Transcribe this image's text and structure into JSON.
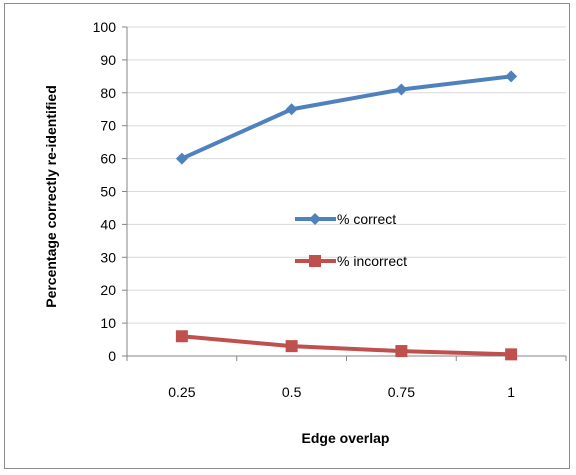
{
  "chart_data": {
    "type": "line",
    "categories": [
      "0.25",
      "0.5",
      "0.75",
      "1"
    ],
    "xlabel": "Edge overlap",
    "ylabel": "Percentage correctly re-identified",
    "ylim": [
      0,
      100
    ],
    "yticks": [
      "0",
      "10",
      "20",
      "30",
      "40",
      "50",
      "60",
      "70",
      "80",
      "90",
      "100"
    ],
    "grid": true,
    "legend": "center-right",
    "series": [
      {
        "name": "% correct",
        "values": [
          60,
          75,
          81,
          85
        ],
        "color": "#4f81bd",
        "marker": "diamond"
      },
      {
        "name": "% incorrect",
        "values": [
          6,
          3,
          1.5,
          0.5
        ],
        "color": "#c0504d",
        "marker": "square"
      }
    ]
  }
}
